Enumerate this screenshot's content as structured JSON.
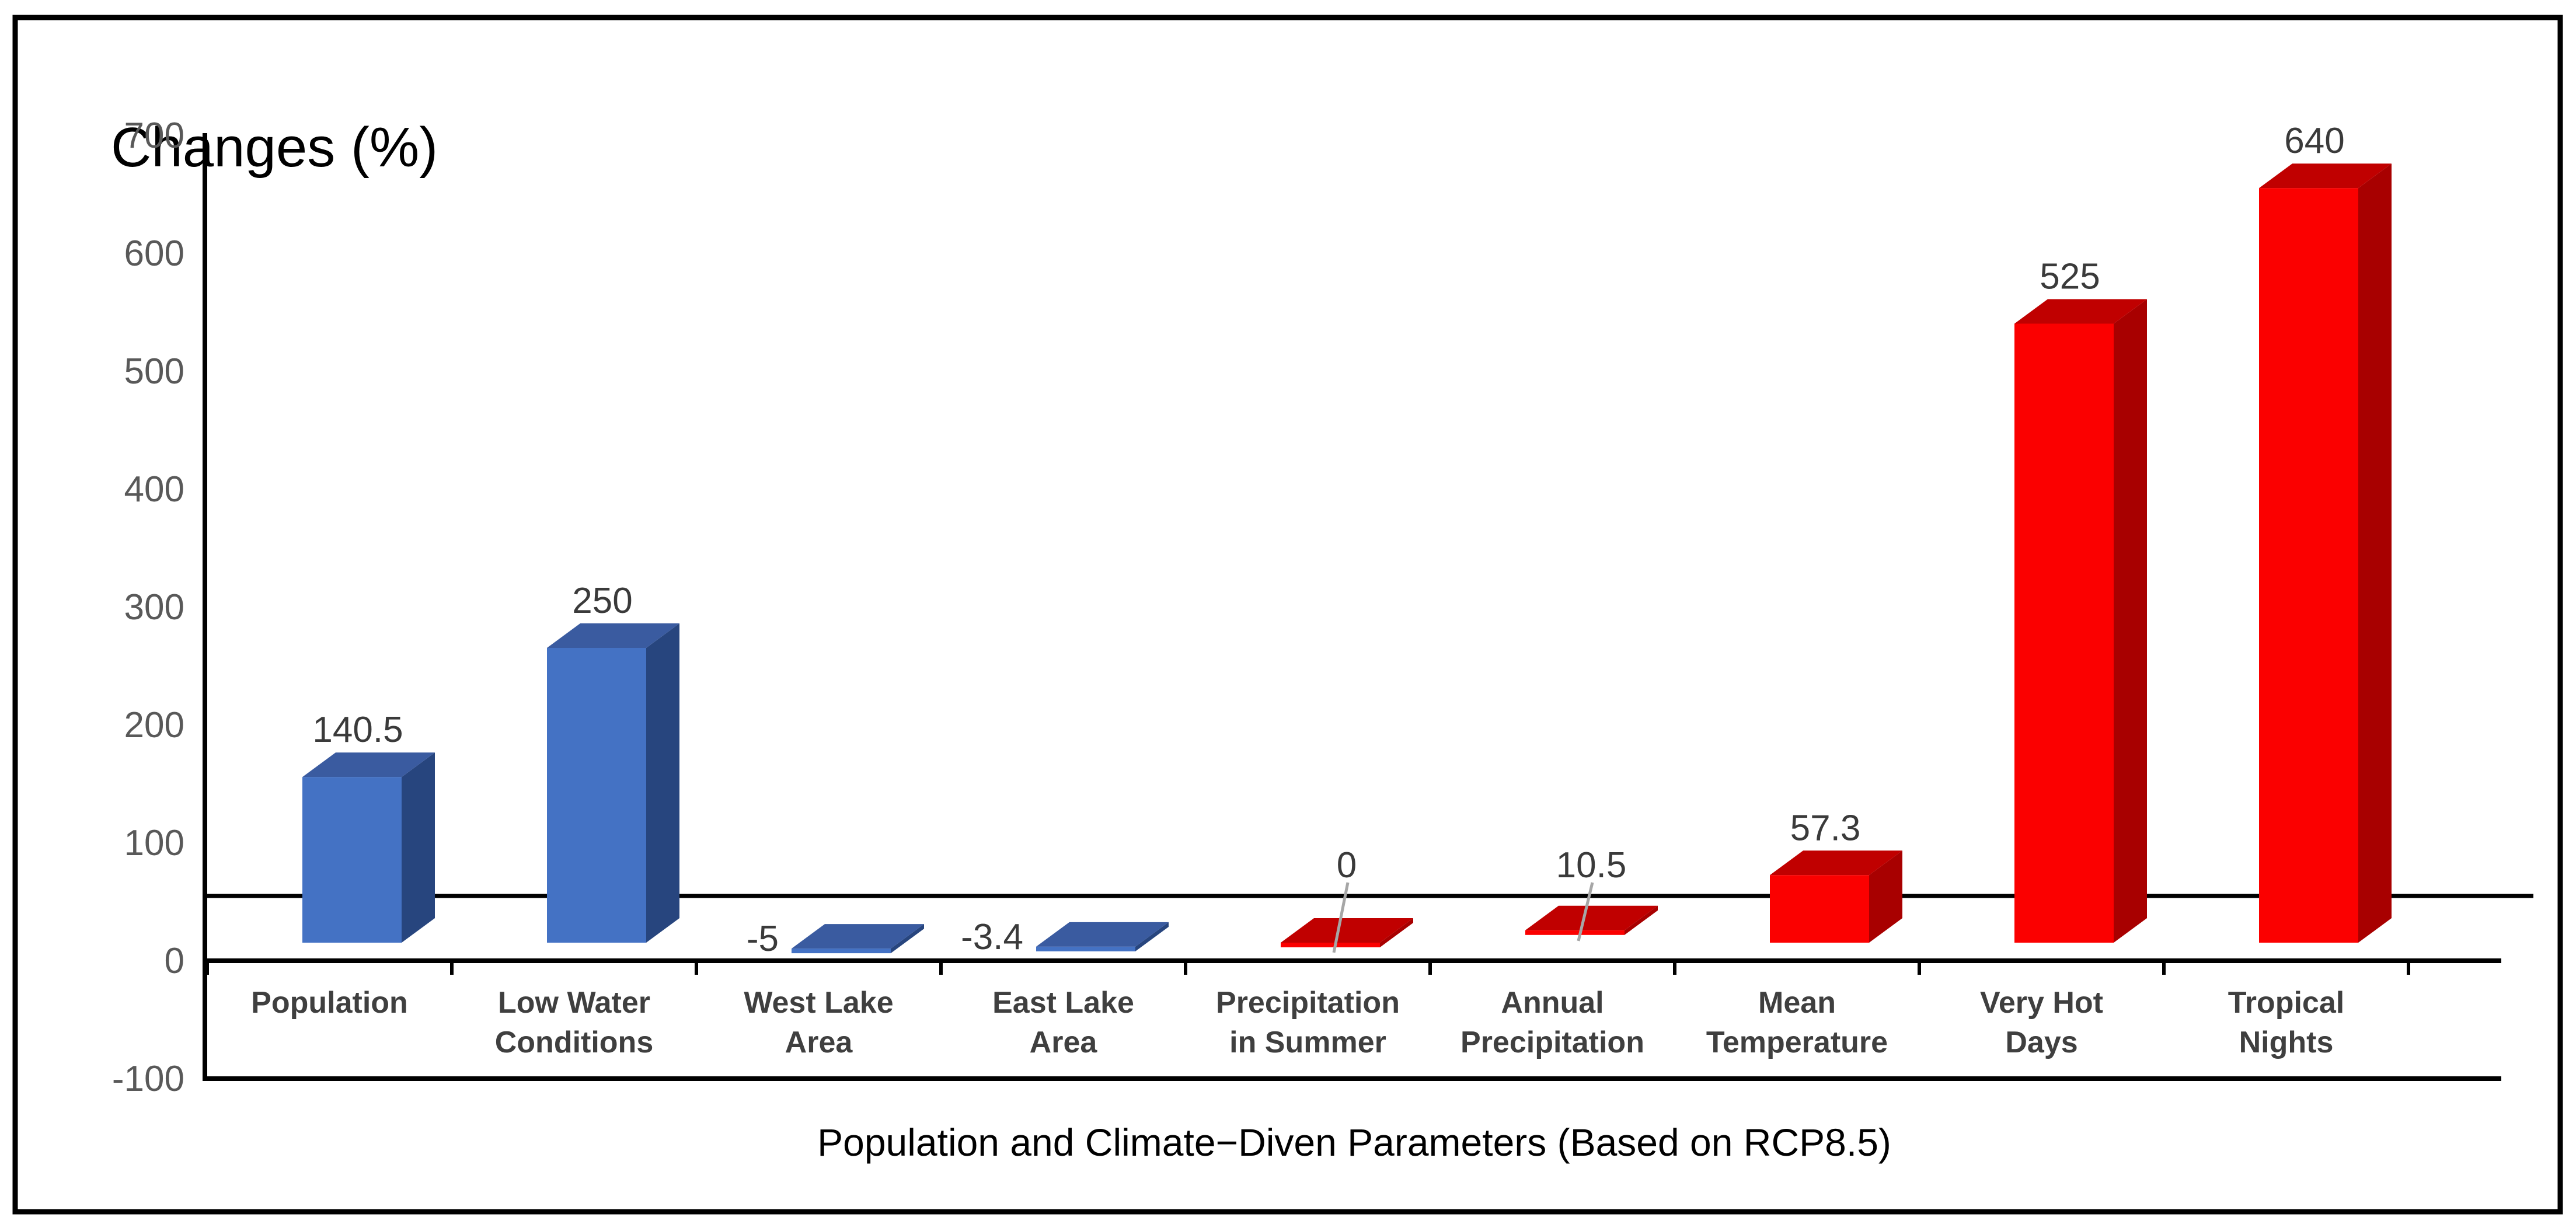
{
  "window": {
    "background_color": "#FFFFFF",
    "border_color": "#000000"
  },
  "chart_data": {
    "type": "bar",
    "style": "3d-column",
    "ylabel": "Changes (%)",
    "xlabel": "Population and Climate−Diven Parameters (Based on RCP8.5)",
    "ylim": [
      -100,
      700
    ],
    "yticks": [
      700,
      600,
      500,
      400,
      300,
      200,
      100,
      0,
      -100
    ],
    "grid": false,
    "legend": false,
    "has_3d_floor_back_line": true,
    "categories": [
      {
        "label_lines": [
          "Population"
        ],
        "value": 140.5,
        "value_label": "140.5",
        "color_group": "blue",
        "leader_line": false
      },
      {
        "label_lines": [
          "Low Water",
          "Conditions"
        ],
        "value": 250,
        "value_label": "250",
        "color_group": "blue",
        "leader_line": false
      },
      {
        "label_lines": [
          "West Lake",
          "Area"
        ],
        "value": -5,
        "value_label": "-5",
        "color_group": "blue",
        "leader_line": false
      },
      {
        "label_lines": [
          "East Lake",
          "Area"
        ],
        "value": -3.4,
        "value_label": "-3.4",
        "color_group": "blue",
        "leader_line": false
      },
      {
        "label_lines": [
          "Precipitation",
          "in Summer"
        ],
        "value": 0,
        "value_label": "0",
        "color_group": "red",
        "leader_line": true
      },
      {
        "label_lines": [
          "Annual",
          "Precipitation"
        ],
        "value": 10.5,
        "value_label": "10.5",
        "color_group": "red",
        "leader_line": true
      },
      {
        "label_lines": [
          "Mean",
          "Temperature"
        ],
        "value": 57.3,
        "value_label": "57.3",
        "color_group": "red",
        "leader_line": false
      },
      {
        "label_lines": [
          "Very Hot",
          "Days"
        ],
        "value": 525,
        "value_label": "525",
        "color_group": "red",
        "leader_line": false
      },
      {
        "label_lines": [
          "Tropical",
          "Nights"
        ],
        "value": 640,
        "value_label": "640",
        "color_group": "red",
        "leader_line": false
      }
    ],
    "colors": {
      "blue_front": "#4472C4",
      "blue_top": "#3A5BA0",
      "blue_side": "#27457E",
      "red_front": "#FB0000",
      "red_top": "#C00000",
      "red_side": "#A80000",
      "axis": "#000000",
      "tick_label": "#595959",
      "data_label": "#3A3A3A",
      "category_label": "#3F3F3F",
      "leader_line": "#A6A6A6"
    }
  }
}
